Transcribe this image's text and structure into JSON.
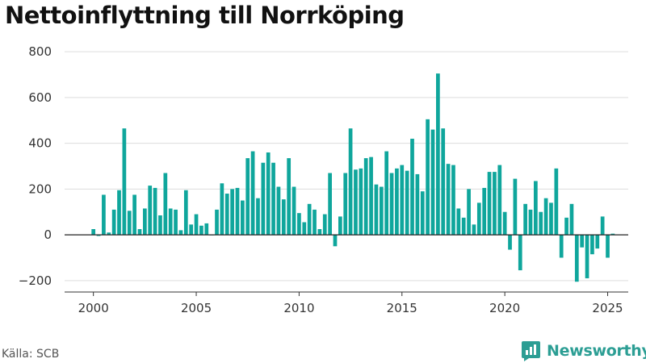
{
  "title": "Nettoinflyttning till Norrköping",
  "source": "Källa: SCB",
  "brand": {
    "name": "Newsworthy",
    "icon": "newsworthy-chart-logo-icon",
    "color": "#2c9e94"
  },
  "chart_data": {
    "type": "bar",
    "title": "Nettoinflyttning till Norrköping",
    "xlabel": "",
    "ylabel": "",
    "color": "#0fa69c",
    "negative_color": "#0fa69c",
    "grid": true,
    "legend": "none",
    "xlim": [
      1998.6,
      2026.0
    ],
    "ylim": [
      -250,
      850
    ],
    "y_ticks": [
      -200,
      0,
      200,
      400,
      600,
      800
    ],
    "y_tick_labels": [
      "−200",
      "0",
      "200",
      "400",
      "600",
      "800"
    ],
    "x_ticks": [
      2000,
      2005,
      2010,
      2015,
      2020,
      2025
    ],
    "x_tick_labels": [
      "2000",
      "2005",
      "2010",
      "2015",
      "2020",
      "2025"
    ],
    "start_year": 2000,
    "periods_per_year": 4,
    "values": [
      25,
      -5,
      175,
      10,
      110,
      195,
      465,
      105,
      175,
      25,
      115,
      215,
      205,
      85,
      270,
      115,
      110,
      20,
      195,
      45,
      90,
      40,
      50,
      0,
      110,
      225,
      180,
      200,
      205,
      150,
      335,
      365,
      160,
      315,
      360,
      315,
      210,
      155,
      335,
      210,
      95,
      55,
      135,
      110,
      25,
      90,
      270,
      -50,
      80,
      270,
      465,
      285,
      290,
      335,
      340,
      220,
      210,
      365,
      270,
      290,
      305,
      280,
      420,
      265,
      190,
      505,
      460,
      705,
      465,
      310,
      305,
      115,
      75,
      200,
      45,
      140,
      205,
      275,
      275,
      305,
      100,
      -65,
      245,
      -155,
      135,
      110,
      235,
      100,
      160,
      140,
      290,
      -100,
      75,
      135,
      -205,
      -55,
      -190,
      -85,
      -60,
      80,
      -100,
      5
    ]
  }
}
